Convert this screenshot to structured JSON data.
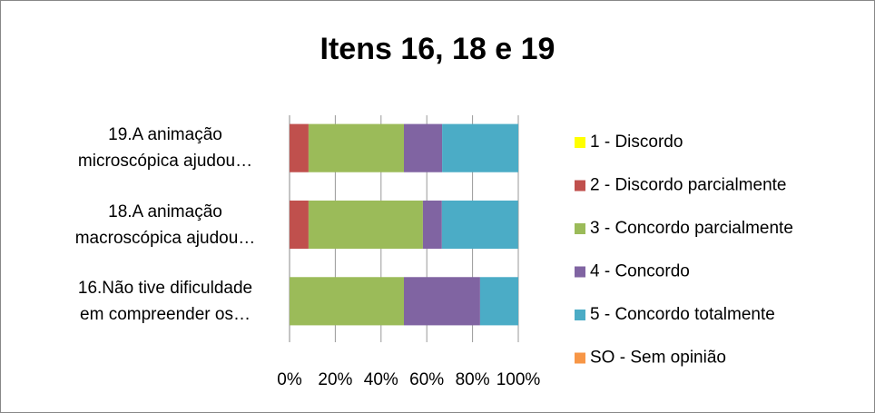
{
  "chart_data": {
    "type": "stacked_barh",
    "title": "Itens 16, 18 e 19",
    "categories": [
      "16.Não tive dificuldade\nem compreender os…",
      "18.A animação\nmacroscópica ajudou…",
      "19.A animação\nmicroscópica ajudou…"
    ],
    "series": [
      {
        "name": "1 - Discordo",
        "color": "#ffff00",
        "values": [
          0,
          0,
          0
        ]
      },
      {
        "name": "2 - Discordo parcialmente",
        "color": "#c0504d",
        "values": [
          0,
          8.3,
          8.3
        ]
      },
      {
        "name": "3 - Concordo parcialmente",
        "color": "#9bbb59",
        "values": [
          50,
          50,
          41.7
        ]
      },
      {
        "name": "4 - Concordo",
        "color": "#8064a2",
        "values": [
          33.3,
          8.3,
          16.7
        ]
      },
      {
        "name": "5 - Concordo totalmente",
        "color": "#4bacc6",
        "values": [
          16.7,
          33.3,
          33.3
        ]
      },
      {
        "name": "SO - Sem opinião",
        "color": "#f79646",
        "values": [
          0,
          0,
          0
        ]
      }
    ],
    "xlim": [
      0,
      100
    ],
    "xticks": [
      {
        "value": 0,
        "label": "0%"
      },
      {
        "value": 20,
        "label": "20%"
      },
      {
        "value": 40,
        "label": "40%"
      },
      {
        "value": 60,
        "label": "60%"
      },
      {
        "value": 80,
        "label": "80%"
      },
      {
        "value": 100,
        "label": "100%"
      }
    ],
    "grid": true,
    "legend": "right"
  }
}
